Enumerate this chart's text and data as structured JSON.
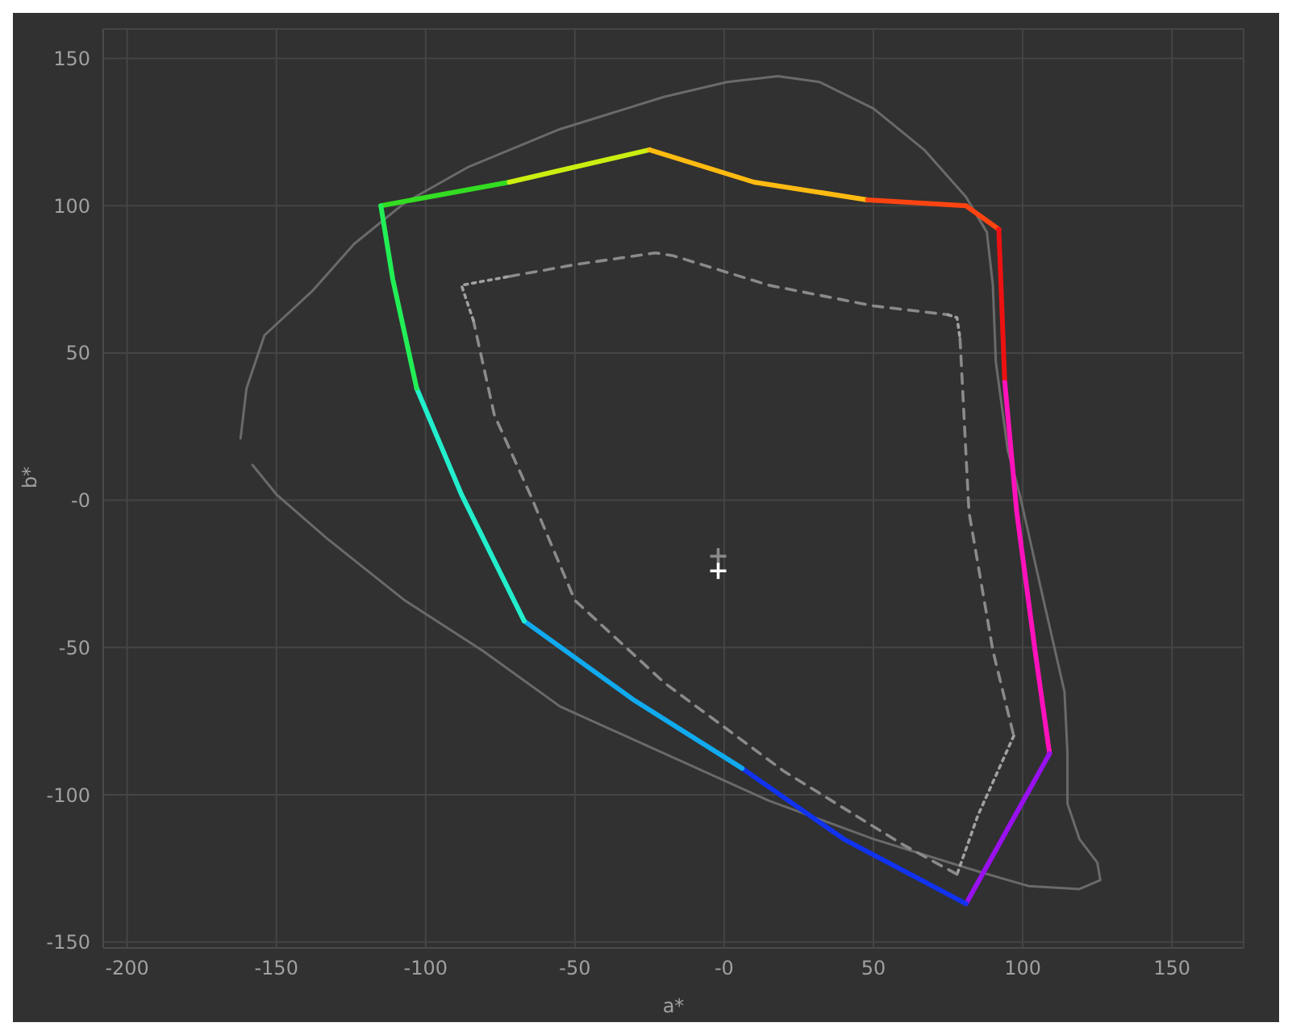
{
  "chart_data": {
    "type": "line",
    "xlabel": "a*",
    "ylabel": "b*",
    "xlim": [
      -208,
      174
    ],
    "ylim": [
      -152,
      160
    ],
    "xticks": [
      -200,
      -150,
      -100,
      -50,
      {
        "value": 0,
        "label": "-0"
      },
      50,
      100,
      150
    ],
    "yticks": [
      -150,
      -100,
      -50,
      {
        "value": 0,
        "label": "-0"
      },
      50,
      100,
      150
    ],
    "grid": true,
    "series": [
      {
        "type": "line",
        "color": "#6a6a6a",
        "line_style": "solid",
        "x": [
          -162,
          -160,
          -154,
          -138,
          -124,
          -107,
          -86,
          -55,
          -20,
          1,
          18,
          32,
          50,
          67,
          81,
          88,
          90,
          91,
          95,
          99,
          107,
          114,
          115,
          115,
          119,
          125,
          126,
          119,
          102,
          85,
          50,
          15,
          -20,
          -55,
          -81,
          -107,
          -133,
          -150,
          -158
        ],
        "values": [
          21,
          38,
          56,
          71,
          87,
          101,
          113,
          126,
          137,
          142,
          144,
          142,
          133,
          119,
          103,
          91,
          73,
          47,
          17,
          2,
          -34,
          -65,
          -86,
          -103,
          -115,
          -123,
          -129,
          -132,
          -131,
          -126,
          -115,
          -102,
          -86,
          -70,
          -51,
          -34,
          -13,
          2,
          12
        ]
      },
      {
        "color": "#33dd22",
        "line_style": "solid",
        "x": [
          -115,
          -72
        ],
        "values": [
          100,
          108
        ]
      },
      {
        "color": "#ccee11",
        "line_style": "solid",
        "x": [
          -72,
          -25
        ],
        "values": [
          108,
          119
        ]
      },
      {
        "color": "#ffbb11",
        "line_style": "solid",
        "x": [
          -25,
          10,
          48
        ],
        "values": [
          119,
          108,
          102
        ]
      },
      {
        "color": "#ff4411",
        "line_style": "solid",
        "x": [
          48,
          81,
          92
        ],
        "values": [
          102,
          100,
          92
        ]
      },
      {
        "color": "#ee1111",
        "line_style": "solid",
        "x": [
          92,
          94
        ],
        "values": [
          92,
          40
        ]
      },
      {
        "color": "#ff11bb",
        "line_style": "solid",
        "x": [
          94,
          98,
          104,
          109
        ],
        "values": [
          40,
          -4,
          -50,
          -86
        ]
      },
      {
        "color": "#9911ee",
        "line_style": "solid",
        "x": [
          109,
          81
        ],
        "values": [
          -86,
          -137
        ]
      },
      {
        "color": "#1133ee",
        "line_style": "solid",
        "x": [
          81,
          40,
          6
        ],
        "values": [
          -137,
          -115,
          -91
        ]
      },
      {
        "color": "#11aaee",
        "line_style": "solid",
        "x": [
          6,
          -30,
          -67
        ],
        "values": [
          -91,
          -68,
          -41
        ]
      },
      {
        "color": "#22eecc",
        "line_style": "solid",
        "x": [
          -67,
          -88,
          -103
        ],
        "values": [
          -41,
          2,
          38
        ]
      },
      {
        "color": "#22ee55",
        "line_style": "solid",
        "x": [
          -103,
          -111,
          -115
        ],
        "values": [
          38,
          75,
          100
        ]
      },
      {
        "color": "#8a8a8a",
        "line_style": "dashed",
        "x": [
          -72,
          -50,
          -23,
          -17,
          15,
          50,
          75
        ],
        "values": [
          76,
          80,
          84,
          83,
          73,
          66,
          63
        ]
      },
      {
        "color": "#a0a0a0",
        "line_style": "dotted",
        "x": [
          75,
          78,
          79
        ],
        "values": [
          63,
          62,
          55
        ]
      },
      {
        "color": "#8a8a8a",
        "line_style": "dashed",
        "x": [
          79,
          82,
          90,
          97
        ],
        "values": [
          55,
          -4,
          -51,
          -80
        ]
      },
      {
        "color": "#a0a0a0",
        "line_style": "dotted",
        "x": [
          97,
          85,
          78
        ],
        "values": [
          -80,
          -107,
          -127
        ]
      },
      {
        "color": "#8a8a8a",
        "line_style": "dashed",
        "x": [
          78,
          60,
          20,
          -20,
          -50,
          -65,
          -77,
          -84
        ],
        "values": [
          -127,
          -117,
          -92,
          -62,
          -34,
          2,
          29,
          61
        ]
      },
      {
        "color": "#a0a0a0",
        "line_style": "dotted",
        "x": [
          -84,
          -88,
          -72
        ],
        "values": [
          61,
          73,
          76
        ]
      },
      {
        "type": "scatter",
        "color": "#8a8a8a",
        "marker": "cross",
        "x": [
          -2
        ],
        "values": [
          -19
        ]
      },
      {
        "type": "scatter",
        "color": "#ffffff",
        "marker": "cross",
        "x": [
          -2
        ],
        "values": [
          -24
        ]
      }
    ]
  }
}
